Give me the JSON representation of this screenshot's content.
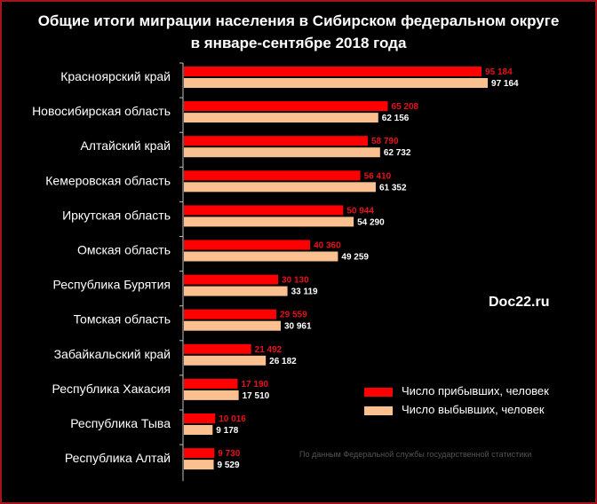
{
  "title_line1": "Общие итоги миграции населения в Сибирском федеральном округе",
  "title_line2": "в январе-сентябре 2018 года",
  "watermark": "Doc22.ru",
  "source": "По данным Федеральной службы государственной статистики",
  "chart_data": {
    "type": "bar",
    "orientation": "horizontal",
    "categories": [
      "Красноярский край",
      "Новосибирская область",
      "Алтайский  край",
      "Кемеровская область",
      "Иркутская область",
      "Омская область",
      "Республика Бурятия",
      "Томская область",
      "Забайкальский край",
      "Республика Хакасия",
      "Республика Тыва",
      "Республика Алтай"
    ],
    "series": [
      {
        "name": "Число прибывших, человек",
        "color": "#ff0000",
        "values": [
          95184,
          65208,
          58790,
          56410,
          50944,
          40360,
          30130,
          29559,
          21492,
          17190,
          10016,
          9730
        ],
        "labels": [
          "95 184",
          "65 208",
          "58 790",
          "56 410",
          "50 944",
          "40 360",
          "30 130",
          "29 559",
          "21 492",
          "17 190",
          "10 016",
          "9 730"
        ]
      },
      {
        "name": "Число выбывших, человек",
        "color": "#fac090",
        "values": [
          97164,
          62156,
          62732,
          61352,
          54290,
          49259,
          33119,
          30961,
          26182,
          17510,
          9178,
          9529
        ],
        "labels": [
          "97 164",
          "62 156",
          "62 732",
          "61 352",
          "54 290",
          "49 259",
          "33 119",
          "30 961",
          "26 182",
          "17 510",
          "9 178",
          "9 529"
        ]
      }
    ],
    "legend": {
      "position": "right",
      "arrivals": "Число прибывших, человек",
      "departures": "Число выбывших, человек"
    },
    "grid": false
  }
}
